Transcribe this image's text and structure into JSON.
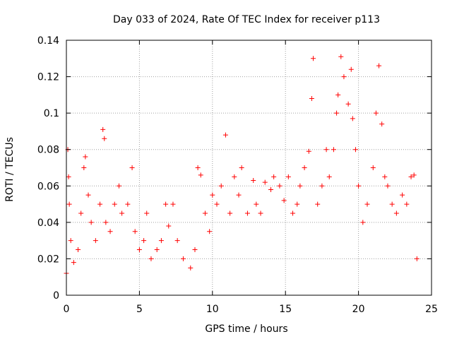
{
  "chart_data": {
    "type": "scatter",
    "title": "Day 033 of 2024, Rate Of TEC Index for receiver p113",
    "xlabel": "GPS time / hours",
    "ylabel": "ROTI / TECUs",
    "xlim": [
      0,
      25
    ],
    "ylim": [
      0,
      0.14
    ],
    "xticks": [
      0,
      5,
      10,
      15,
      20,
      25
    ],
    "yticks": [
      0,
      0.02,
      0.04,
      0.06,
      0.08,
      0.1,
      0.12,
      0.14
    ],
    "xtick_labels": [
      "0",
      "5",
      "10",
      "15",
      "20",
      "25"
    ],
    "ytick_labels": [
      "0",
      "0.02",
      "0.04",
      "0.06",
      "0.08",
      "0.1",
      "0.12",
      "0.14"
    ],
    "grid": true,
    "marker": "+",
    "color": "#ff0000",
    "series": [
      {
        "name": "ROTI",
        "x": [
          0.0,
          0.1,
          0.15,
          0.2,
          0.3,
          0.5,
          0.8,
          1.0,
          1.2,
          1.3,
          1.5,
          1.7,
          2.0,
          2.3,
          2.5,
          2.6,
          2.7,
          3.0,
          3.3,
          3.6,
          3.8,
          4.2,
          4.5,
          4.7,
          5.0,
          5.3,
          5.5,
          5.8,
          6.2,
          6.5,
          6.8,
          7.0,
          7.3,
          7.6,
          8.0,
          8.5,
          8.8,
          9.0,
          9.2,
          9.5,
          9.8,
          10.0,
          10.3,
          10.6,
          10.9,
          11.2,
          11.5,
          11.8,
          12.0,
          12.4,
          12.8,
          13.0,
          13.3,
          13.6,
          14.0,
          14.2,
          14.6,
          14.9,
          15.2,
          15.5,
          15.8,
          16.0,
          16.3,
          16.6,
          16.8,
          16.9,
          17.2,
          17.5,
          17.8,
          18.0,
          18.3,
          18.5,
          18.6,
          18.8,
          19.0,
          19.3,
          19.5,
          19.6,
          19.8,
          20.0,
          20.3,
          20.6,
          21.0,
          21.2,
          21.4,
          21.6,
          21.8,
          22.0,
          22.3,
          22.6,
          23.0,
          23.3,
          23.6,
          23.8,
          24.0
        ],
        "y": [
          0.012,
          0.08,
          0.065,
          0.05,
          0.03,
          0.018,
          0.025,
          0.045,
          0.07,
          0.076,
          0.055,
          0.04,
          0.03,
          0.05,
          0.091,
          0.086,
          0.04,
          0.035,
          0.05,
          0.06,
          0.045,
          0.05,
          0.07,
          0.035,
          0.025,
          0.03,
          0.045,
          0.02,
          0.025,
          0.03,
          0.05,
          0.038,
          0.05,
          0.03,
          0.02,
          0.015,
          0.025,
          0.07,
          0.066,
          0.045,
          0.035,
          0.055,
          0.05,
          0.06,
          0.088,
          0.045,
          0.065,
          0.055,
          0.07,
          0.045,
          0.063,
          0.05,
          0.045,
          0.062,
          0.058,
          0.065,
          0.06,
          0.052,
          0.065,
          0.045,
          0.05,
          0.06,
          0.07,
          0.079,
          0.108,
          0.13,
          0.05,
          0.06,
          0.08,
          0.065,
          0.08,
          0.1,
          0.11,
          0.131,
          0.12,
          0.105,
          0.124,
          0.097,
          0.08,
          0.06,
          0.04,
          0.05,
          0.07,
          0.1,
          0.126,
          0.094,
          0.065,
          0.06,
          0.05,
          0.045,
          0.055,
          0.05,
          0.065,
          0.066,
          0.02
        ]
      }
    ]
  }
}
